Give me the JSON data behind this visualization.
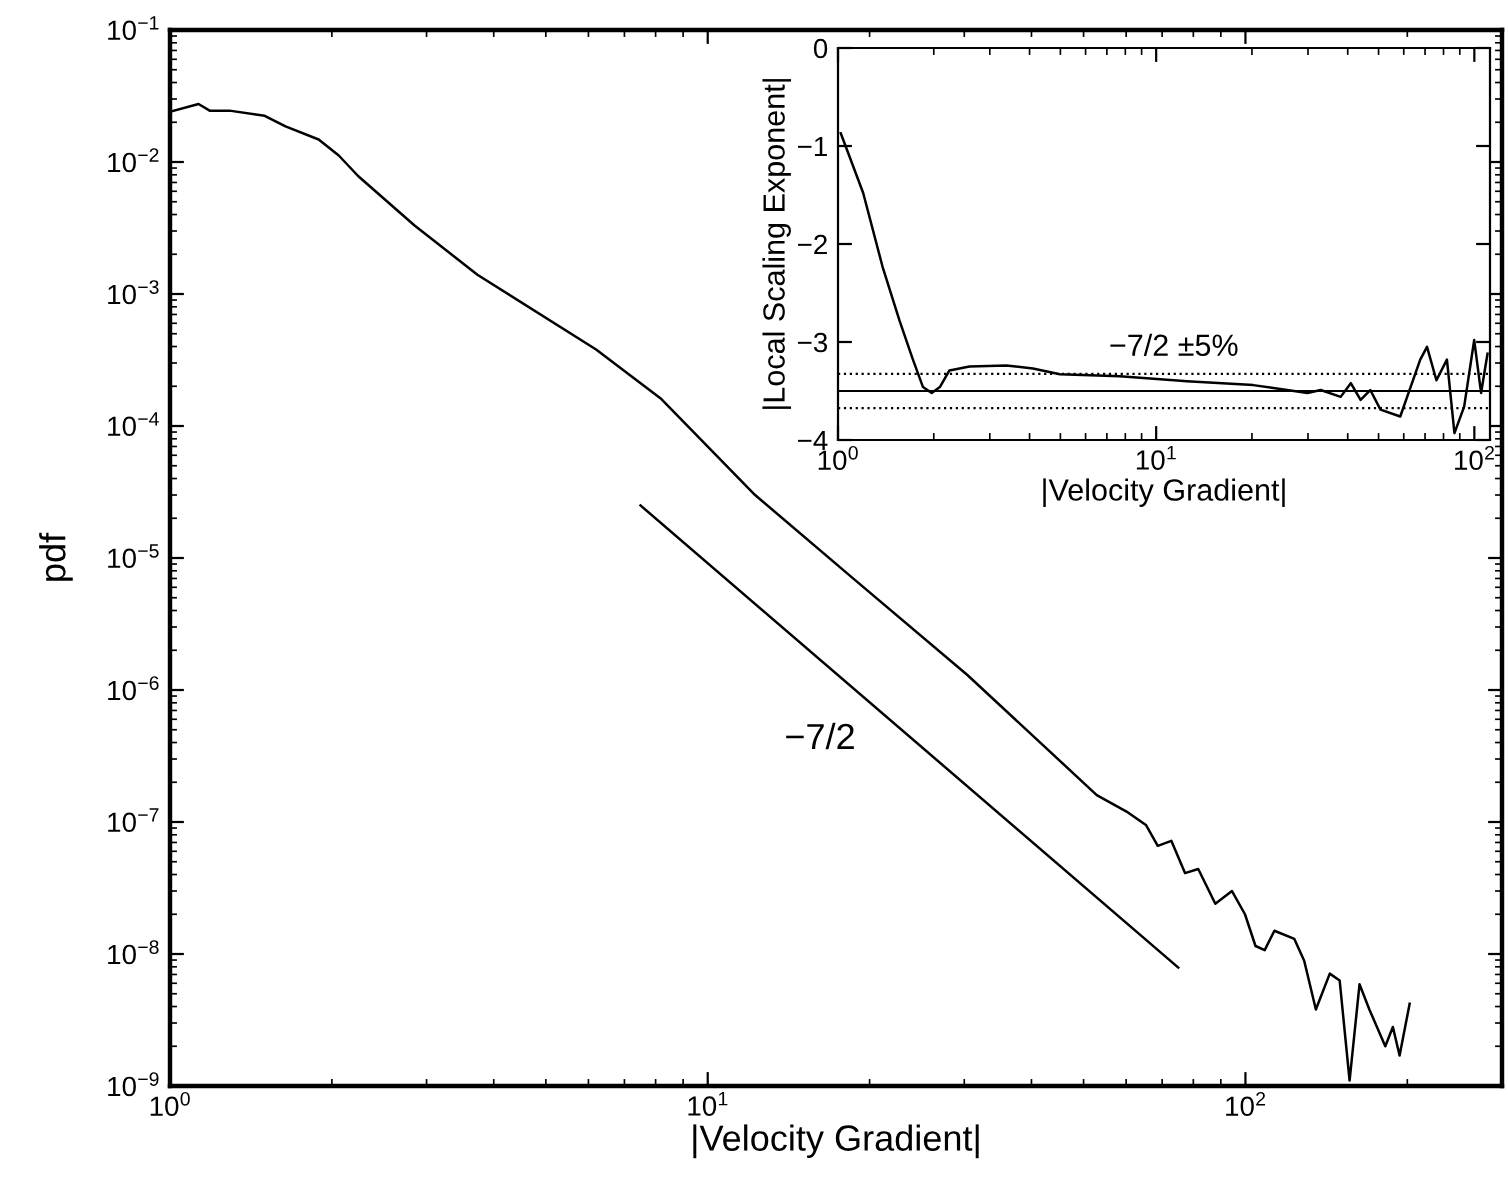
{
  "chart_data": [
    {
      "type": "line",
      "xlabel": "|Velocity Gradient|",
      "ylabel": "pdf",
      "log": "xy",
      "xlim": [
        1,
        300
      ],
      "ylim": [
        1e-09,
        0.1
      ],
      "xticks": [
        {
          "value": 1,
          "label": "10$^{0}$"
        },
        {
          "value": 10,
          "label": "10$^{1}$"
        },
        {
          "value": 100,
          "label": "10$^{2}$"
        }
      ],
      "yticks": [
        {
          "value": 1e-09,
          "label": "10$^{−9}$"
        },
        {
          "value": 1e-08,
          "label": "10$^{−8}$"
        },
        {
          "value": 1e-07,
          "label": "10$^{−7}$"
        },
        {
          "value": 1e-06,
          "label": "10$^{−6}$"
        },
        {
          "value": 1e-05,
          "label": "10$^{−5}$"
        },
        {
          "value": 0.0001,
          "label": "10$^{−4}$"
        },
        {
          "value": 0.001,
          "label": "10$^{−3}$"
        },
        {
          "value": 0.01,
          "label": "10$^{−2}$"
        },
        {
          "value": 0.1,
          "label": "10$^{−1}$"
        }
      ],
      "series": [
        {
          "color": "#000000",
          "x": [
            1.0,
            1.13,
            1.185,
            1.29,
            1.5,
            1.64,
            1.89,
            2.06,
            2.24,
            2.85,
            3.73,
            6.2,
            8.2,
            12.25,
            18.8,
            30.4,
            52.9,
            60.1,
            65.3,
            68.7,
            72.8,
            77.2,
            81.7,
            87.9,
            94.4,
            99.8,
            104.4,
            108.6,
            113.2,
            123.3,
            128.6,
            135.2,
            143.5,
            149.7,
            156.2,
            163,
            170,
            182,
            188,
            193.5,
            202
          ],
          "values": [
            0.024,
            0.0275,
            0.0245,
            0.0245,
            0.0224,
            0.0186,
            0.0148,
            0.0112,
            0.0078,
            0.0033,
            0.0014,
            0.00038,
            0.00016,
            3e-05,
            6.8e-06,
            1.3e-06,
            1.6e-07,
            1.2e-07,
            9.5e-08,
            6.6e-08,
            7.2e-08,
            4.1e-08,
            4.4e-08,
            2.4e-08,
            3e-08,
            2e-08,
            1.15e-08,
            1.07e-08,
            1.5e-08,
            1.3e-08,
            8.9e-09,
            3.8e-09,
            7.1e-09,
            6.3e-09,
            1.1e-09,
            5.9e-09,
            3.8e-09,
            2e-09,
            2.8e-09,
            1.7e-09,
            4.2e-09
          ]
        },
        {
          "type": "line",
          "color": "#000000",
          "x": [
            7.5,
            75
          ],
          "values": [
            2.5e-05,
            7.9e-09
          ]
        }
      ],
      "annotations": [
        "−7/2"
      ]
    },
    {
      "type": "line",
      "xlabel": "|Velocity Gradient|",
      "ylabel": "|Local Scaling Exponent|",
      "log": "x",
      "xlim": [
        1,
        112
      ],
      "ylim": [
        -4,
        0
      ],
      "xticks": [
        {
          "value": 1,
          "label": "10$^{0}$"
        },
        {
          "value": 10,
          "label": "10$^{1}$"
        },
        {
          "value": 100,
          "label": "10$^{2}$"
        }
      ],
      "yticks": [
        {
          "value": -4,
          "label": "−4"
        },
        {
          "value": -3,
          "label": "−3"
        },
        {
          "value": -2,
          "label": "−2"
        },
        {
          "value": -1,
          "label": "−1"
        },
        0
      ],
      "series": [
        {
          "color": "#000000",
          "x": [
            1.02,
            1.2,
            1.38,
            1.56,
            1.72,
            1.85,
            1.97,
            2.09,
            2.24,
            2.59,
            3.38,
            4.1,
            4.98,
            7.69,
            12.5,
            20.2,
            25.8,
            29.9,
            32.9,
            38.0,
            40.9,
            43.9,
            47.1,
            50.7,
            58.5,
            67.6,
            71.0,
            76.0,
            82,
            86.6,
            92.9,
            99.9,
            105,
            110
          ],
          "values": [
            -0.87,
            -1.48,
            -2.23,
            -2.78,
            -3.18,
            -3.46,
            -3.52,
            -3.46,
            -3.29,
            -3.25,
            -3.24,
            -3.27,
            -3.33,
            -3.35,
            -3.4,
            -3.44,
            -3.49,
            -3.52,
            -3.49,
            -3.56,
            -3.42,
            -3.59,
            -3.49,
            -3.69,
            -3.76,
            -3.18,
            -3.05,
            -3.39,
            -3.18,
            -3.93,
            -3.66,
            -2.98,
            -3.52,
            -3.12
          ]
        }
      ],
      "ref_lines": [
        {
          "axis": "y",
          "value": -3.5,
          "color": "#000000",
          "line_style": "solid"
        },
        {
          "axis": "y",
          "value": -3.325,
          "color": "#000000",
          "line_style": "dotted"
        },
        {
          "axis": "y",
          "value": -3.675,
          "color": "#000000",
          "line_style": "dotted"
        }
      ],
      "annotations": [
        "−7/2 ±5%"
      ]
    }
  ]
}
